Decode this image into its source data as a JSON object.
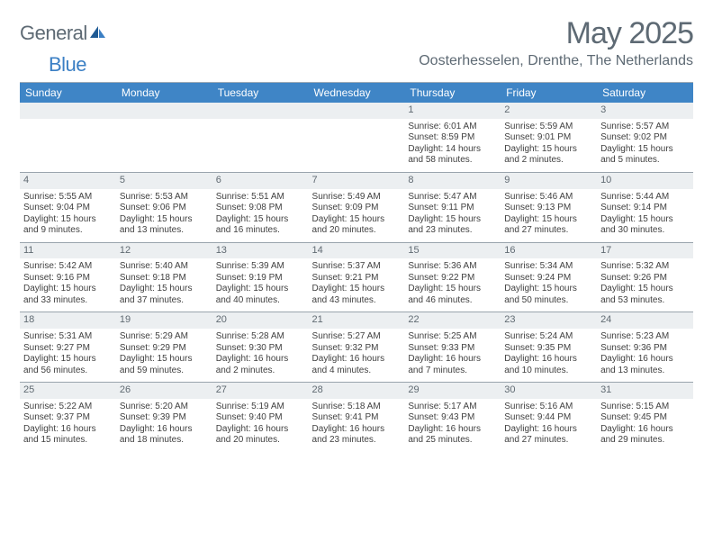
{
  "brand": {
    "word1": "General",
    "word2": "Blue"
  },
  "title": "May 2025",
  "location": "Oosterhesselen, Drenthe, The Netherlands",
  "colors": {
    "header_bg": "#3f85c6",
    "header_fg": "#ffffff",
    "daynum_bg": "#eceff1",
    "text_muted": "#5e6a74",
    "rule": "#9aa4ad",
    "brand_blue": "#3b7fc4"
  },
  "day_headers": [
    "Sunday",
    "Monday",
    "Tuesday",
    "Wednesday",
    "Thursday",
    "Friday",
    "Saturday"
  ],
  "weeks": [
    [
      null,
      null,
      null,
      null,
      {
        "n": "1",
        "sr": "Sunrise: 6:01 AM",
        "ss": "Sunset: 8:59 PM",
        "dl1": "Daylight: 14 hours",
        "dl2": "and 58 minutes."
      },
      {
        "n": "2",
        "sr": "Sunrise: 5:59 AM",
        "ss": "Sunset: 9:01 PM",
        "dl1": "Daylight: 15 hours",
        "dl2": "and 2 minutes."
      },
      {
        "n": "3",
        "sr": "Sunrise: 5:57 AM",
        "ss": "Sunset: 9:02 PM",
        "dl1": "Daylight: 15 hours",
        "dl2": "and 5 minutes."
      }
    ],
    [
      {
        "n": "4",
        "sr": "Sunrise: 5:55 AM",
        "ss": "Sunset: 9:04 PM",
        "dl1": "Daylight: 15 hours",
        "dl2": "and 9 minutes."
      },
      {
        "n": "5",
        "sr": "Sunrise: 5:53 AM",
        "ss": "Sunset: 9:06 PM",
        "dl1": "Daylight: 15 hours",
        "dl2": "and 13 minutes."
      },
      {
        "n": "6",
        "sr": "Sunrise: 5:51 AM",
        "ss": "Sunset: 9:08 PM",
        "dl1": "Daylight: 15 hours",
        "dl2": "and 16 minutes."
      },
      {
        "n": "7",
        "sr": "Sunrise: 5:49 AM",
        "ss": "Sunset: 9:09 PM",
        "dl1": "Daylight: 15 hours",
        "dl2": "and 20 minutes."
      },
      {
        "n": "8",
        "sr": "Sunrise: 5:47 AM",
        "ss": "Sunset: 9:11 PM",
        "dl1": "Daylight: 15 hours",
        "dl2": "and 23 minutes."
      },
      {
        "n": "9",
        "sr": "Sunrise: 5:46 AM",
        "ss": "Sunset: 9:13 PM",
        "dl1": "Daylight: 15 hours",
        "dl2": "and 27 minutes."
      },
      {
        "n": "10",
        "sr": "Sunrise: 5:44 AM",
        "ss": "Sunset: 9:14 PM",
        "dl1": "Daylight: 15 hours",
        "dl2": "and 30 minutes."
      }
    ],
    [
      {
        "n": "11",
        "sr": "Sunrise: 5:42 AM",
        "ss": "Sunset: 9:16 PM",
        "dl1": "Daylight: 15 hours",
        "dl2": "and 33 minutes."
      },
      {
        "n": "12",
        "sr": "Sunrise: 5:40 AM",
        "ss": "Sunset: 9:18 PM",
        "dl1": "Daylight: 15 hours",
        "dl2": "and 37 minutes."
      },
      {
        "n": "13",
        "sr": "Sunrise: 5:39 AM",
        "ss": "Sunset: 9:19 PM",
        "dl1": "Daylight: 15 hours",
        "dl2": "and 40 minutes."
      },
      {
        "n": "14",
        "sr": "Sunrise: 5:37 AM",
        "ss": "Sunset: 9:21 PM",
        "dl1": "Daylight: 15 hours",
        "dl2": "and 43 minutes."
      },
      {
        "n": "15",
        "sr": "Sunrise: 5:36 AM",
        "ss": "Sunset: 9:22 PM",
        "dl1": "Daylight: 15 hours",
        "dl2": "and 46 minutes."
      },
      {
        "n": "16",
        "sr": "Sunrise: 5:34 AM",
        "ss": "Sunset: 9:24 PM",
        "dl1": "Daylight: 15 hours",
        "dl2": "and 50 minutes."
      },
      {
        "n": "17",
        "sr": "Sunrise: 5:32 AM",
        "ss": "Sunset: 9:26 PM",
        "dl1": "Daylight: 15 hours",
        "dl2": "and 53 minutes."
      }
    ],
    [
      {
        "n": "18",
        "sr": "Sunrise: 5:31 AM",
        "ss": "Sunset: 9:27 PM",
        "dl1": "Daylight: 15 hours",
        "dl2": "and 56 minutes."
      },
      {
        "n": "19",
        "sr": "Sunrise: 5:29 AM",
        "ss": "Sunset: 9:29 PM",
        "dl1": "Daylight: 15 hours",
        "dl2": "and 59 minutes."
      },
      {
        "n": "20",
        "sr": "Sunrise: 5:28 AM",
        "ss": "Sunset: 9:30 PM",
        "dl1": "Daylight: 16 hours",
        "dl2": "and 2 minutes."
      },
      {
        "n": "21",
        "sr": "Sunrise: 5:27 AM",
        "ss": "Sunset: 9:32 PM",
        "dl1": "Daylight: 16 hours",
        "dl2": "and 4 minutes."
      },
      {
        "n": "22",
        "sr": "Sunrise: 5:25 AM",
        "ss": "Sunset: 9:33 PM",
        "dl1": "Daylight: 16 hours",
        "dl2": "and 7 minutes."
      },
      {
        "n": "23",
        "sr": "Sunrise: 5:24 AM",
        "ss": "Sunset: 9:35 PM",
        "dl1": "Daylight: 16 hours",
        "dl2": "and 10 minutes."
      },
      {
        "n": "24",
        "sr": "Sunrise: 5:23 AM",
        "ss": "Sunset: 9:36 PM",
        "dl1": "Daylight: 16 hours",
        "dl2": "and 13 minutes."
      }
    ],
    [
      {
        "n": "25",
        "sr": "Sunrise: 5:22 AM",
        "ss": "Sunset: 9:37 PM",
        "dl1": "Daylight: 16 hours",
        "dl2": "and 15 minutes."
      },
      {
        "n": "26",
        "sr": "Sunrise: 5:20 AM",
        "ss": "Sunset: 9:39 PM",
        "dl1": "Daylight: 16 hours",
        "dl2": "and 18 minutes."
      },
      {
        "n": "27",
        "sr": "Sunrise: 5:19 AM",
        "ss": "Sunset: 9:40 PM",
        "dl1": "Daylight: 16 hours",
        "dl2": "and 20 minutes."
      },
      {
        "n": "28",
        "sr": "Sunrise: 5:18 AM",
        "ss": "Sunset: 9:41 PM",
        "dl1": "Daylight: 16 hours",
        "dl2": "and 23 minutes."
      },
      {
        "n": "29",
        "sr": "Sunrise: 5:17 AM",
        "ss": "Sunset: 9:43 PM",
        "dl1": "Daylight: 16 hours",
        "dl2": "and 25 minutes."
      },
      {
        "n": "30",
        "sr": "Sunrise: 5:16 AM",
        "ss": "Sunset: 9:44 PM",
        "dl1": "Daylight: 16 hours",
        "dl2": "and 27 minutes."
      },
      {
        "n": "31",
        "sr": "Sunrise: 5:15 AM",
        "ss": "Sunset: 9:45 PM",
        "dl1": "Daylight: 16 hours",
        "dl2": "and 29 minutes."
      }
    ]
  ]
}
